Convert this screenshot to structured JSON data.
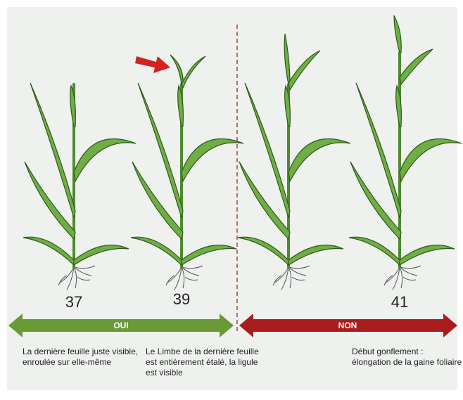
{
  "stages": [
    "37",
    "39",
    "41"
  ],
  "bands": [
    "OUI",
    "NON"
  ],
  "descriptions": [
    [
      "La dernière feuille juste visible,",
      "enroulée sur elle-même"
    ],
    [
      "Le Limbe de la dernière feuille",
      "est entièrement étalé, la ligule",
      "est visible"
    ],
    [
      "Début gonflement :",
      "élongation de la gaine foliaire"
    ]
  ]
}
